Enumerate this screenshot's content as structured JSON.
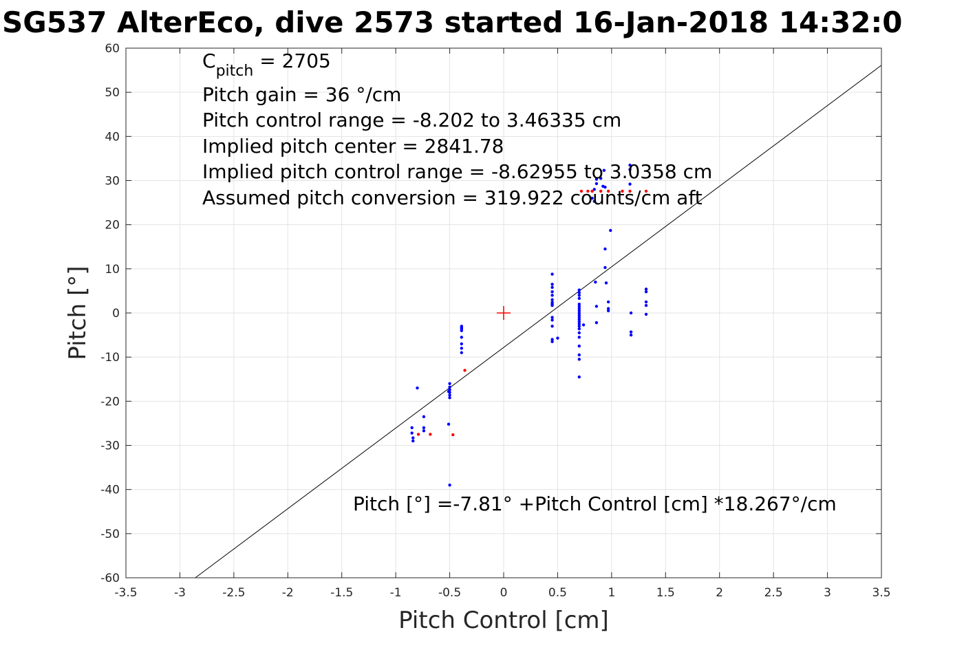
{
  "chart_data": {
    "type": "scatter",
    "title": "SG537 AlterEco, dive 2573 started 16-Jan-2018 14:32:0",
    "xlabel": "Pitch Control [cm]",
    "ylabel": "Pitch [°]",
    "xlim": [
      -3.5,
      3.5
    ],
    "ylim": [
      -60,
      60
    ],
    "xticks": [
      -3.5,
      -3,
      -2.5,
      -2,
      -1.5,
      -1,
      -0.5,
      0,
      0.5,
      1,
      1.5,
      2,
      2.5,
      3,
      3.5
    ],
    "xtick_labels": [
      "-3.5",
      "-3",
      "-2.5",
      "-2",
      "-1.5",
      "-1",
      "-0.5",
      "0",
      "0.5",
      "1",
      "1.5",
      "2",
      "2.5",
      "3",
      "3.5"
    ],
    "yticks": [
      -60,
      -50,
      -40,
      -30,
      -20,
      -10,
      0,
      10,
      20,
      30,
      40,
      50,
      60
    ],
    "ytick_labels": [
      "-60",
      "-50",
      "-40",
      "-30",
      "-20",
      "-10",
      "0",
      "10",
      "20",
      "30",
      "40",
      "50",
      "60"
    ],
    "grid": true,
    "annotations": {
      "c_pitch_base": "C",
      "c_pitch_sub": "pitch",
      "c_pitch_value": " = 2705",
      "lines": [
        "Pitch gain = 36 °/cm",
        "Pitch control range = -8.202 to 3.46335 cm",
        "Implied pitch center = 2841.78",
        "Implied pitch control range = -8.62955 to 3.0358 cm",
        "Assumed pitch conversion = 319.922 counts/cm aft"
      ],
      "fit_equation": "Pitch [°] =-7.81° +Pitch Control [cm] *18.267°/cm"
    },
    "fit_line": {
      "intercept": -7.81,
      "slope": 18.267
    },
    "center_marker": {
      "x": 0,
      "y": 0,
      "color": "#ff0000"
    },
    "series": [
      {
        "color": "#0000ff",
        "points": [
          [
            -0.84,
            -29
          ],
          [
            -0.84,
            -28.3
          ],
          [
            -0.85,
            -27.2
          ],
          [
            -0.85,
            -26
          ],
          [
            -0.8,
            -17
          ],
          [
            -0.74,
            -23.5
          ],
          [
            -0.74,
            -26
          ],
          [
            -0.74,
            -26.7
          ],
          [
            -0.5,
            -16
          ],
          [
            -0.5,
            -16.8
          ],
          [
            -0.5,
            -17.4
          ],
          [
            -0.5,
            -18
          ],
          [
            -0.5,
            -18.6
          ],
          [
            -0.5,
            -19.2
          ],
          [
            -0.51,
            -17.8
          ],
          [
            -0.51,
            -25.2
          ],
          [
            -0.5,
            -39
          ],
          [
            -0.39,
            -3
          ],
          [
            -0.39,
            -3.3
          ],
          [
            -0.39,
            -3.6
          ],
          [
            -0.39,
            -4
          ],
          [
            -0.39,
            -5.5
          ],
          [
            -0.39,
            -7
          ],
          [
            -0.39,
            -8
          ],
          [
            -0.39,
            -9
          ],
          [
            0.45,
            8.8
          ],
          [
            0.45,
            6.5
          ],
          [
            0.45,
            5.8
          ],
          [
            0.45,
            4.8
          ],
          [
            0.45,
            4
          ],
          [
            0.45,
            3
          ],
          [
            0.45,
            2.4
          ],
          [
            0.45,
            2
          ],
          [
            0.45,
            1.7
          ],
          [
            0.45,
            -1
          ],
          [
            0.45,
            -1.6
          ],
          [
            0.45,
            -3
          ],
          [
            0.45,
            -6
          ],
          [
            0.45,
            -6.5
          ],
          [
            0.5,
            -5.7
          ],
          [
            0.7,
            5.2
          ],
          [
            0.7,
            4.6
          ],
          [
            0.7,
            4
          ],
          [
            0.7,
            3.3
          ],
          [
            0.7,
            2
          ],
          [
            0.7,
            1.5
          ],
          [
            0.7,
            1
          ],
          [
            0.7,
            0.5
          ],
          [
            0.7,
            0
          ],
          [
            0.7,
            -0.5
          ],
          [
            0.7,
            -1
          ],
          [
            0.7,
            -1.5
          ],
          [
            0.7,
            -2
          ],
          [
            0.7,
            -2.5
          ],
          [
            0.7,
            -3
          ],
          [
            0.7,
            -3.6
          ],
          [
            0.7,
            -4.5
          ],
          [
            0.7,
            -5.5
          ],
          [
            0.7,
            -7.5
          ],
          [
            0.7,
            -9.5
          ],
          [
            0.7,
            -10.5
          ],
          [
            0.7,
            -14.5
          ],
          [
            0.74,
            -2.7
          ],
          [
            0.82,
            26
          ],
          [
            0.84,
            25.3
          ],
          [
            0.84,
            28
          ],
          [
            0.86,
            29.3
          ],
          [
            0.86,
            30.3
          ],
          [
            0.9,
            30.5
          ],
          [
            0.93,
            32.3
          ],
          [
            0.92,
            28.7
          ],
          [
            0.94,
            28.5
          ],
          [
            0.85,
            7
          ],
          [
            0.86,
            1.5
          ],
          [
            0.86,
            -2.2
          ],
          [
            0.94,
            14.5
          ],
          [
            0.94,
            10.3
          ],
          [
            0.95,
            6.8
          ],
          [
            0.97,
            2.5
          ],
          [
            0.97,
            1
          ],
          [
            0.97,
            0.5
          ],
          [
            0.99,
            18.7
          ],
          [
            1.17,
            29.2
          ],
          [
            1.17,
            32.5
          ],
          [
            1.17,
            33.5
          ],
          [
            1.18,
            0
          ],
          [
            1.18,
            -4.3
          ],
          [
            1.18,
            -5
          ],
          [
            1.32,
            5.4
          ],
          [
            1.32,
            4.8
          ],
          [
            1.32,
            2.5
          ],
          [
            1.32,
            1.7
          ],
          [
            1.32,
            -0.3
          ]
        ]
      },
      {
        "color": "#ff0000",
        "points": [
          [
            -0.79,
            -27.5
          ],
          [
            -0.68,
            -27.5
          ],
          [
            -0.47,
            -27.6
          ],
          [
            -0.36,
            -13
          ],
          [
            0.72,
            27.6
          ],
          [
            0.78,
            27.6
          ],
          [
            0.82,
            27.6
          ],
          [
            0.9,
            27.6
          ],
          [
            0.97,
            27.6
          ],
          [
            1.1,
            27.6
          ],
          [
            1.17,
            27.6
          ],
          [
            1.32,
            27.6
          ]
        ]
      }
    ]
  }
}
